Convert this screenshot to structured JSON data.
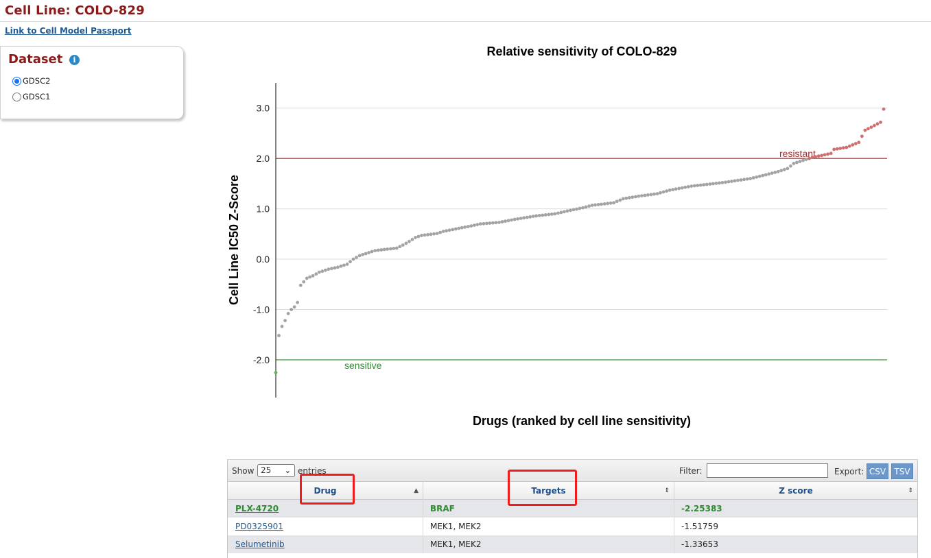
{
  "header": {
    "title": "Cell Line: COLO-829",
    "passport_link": "Link to Cell Model Passport"
  },
  "dataset": {
    "heading": "Dataset",
    "info_icon": "info-icon",
    "options": [
      {
        "label": "GDSC2",
        "checked": true
      },
      {
        "label": "GDSC1",
        "checked": false
      }
    ]
  },
  "chart_data": {
    "type": "scatter",
    "title": "Relative sensitivity of COLO-829",
    "xlabel": "Drugs (ranked by cell line sensitivity)",
    "ylabel": "Cell Line IC50 Z-Score",
    "ylim": [
      -2.75,
      3.5
    ],
    "yticks": [
      "-2.0",
      "-1.0",
      "0.0",
      "1.0",
      "2.0",
      "3.0"
    ],
    "grid": true,
    "thresholds": [
      {
        "label": "resistant",
        "value": 2.0,
        "color": "#a52a2a"
      },
      {
        "label": "sensitive",
        "value": -2.0,
        "color": "#2e8b2e"
      }
    ],
    "colors": {
      "sensitive": "#5fb05f",
      "neutral": "#a3a3a3",
      "resistant": "#cd6f6f"
    },
    "anchors": [
      [
        1,
        -2.25383
      ],
      [
        2,
        -1.51759
      ],
      [
        3,
        -1.33653
      ],
      [
        4,
        -1.22
      ],
      [
        5,
        -1.08
      ],
      [
        6,
        -1.0
      ],
      [
        7,
        -0.95
      ],
      [
        8,
        -0.86
      ],
      [
        9,
        -0.52
      ],
      [
        10,
        -0.45
      ],
      [
        11,
        -0.38
      ],
      [
        13,
        -0.33
      ],
      [
        15,
        -0.26
      ],
      [
        18,
        -0.2
      ],
      [
        21,
        -0.16
      ],
      [
        24,
        -0.1
      ],
      [
        26,
        0.0
      ],
      [
        28,
        0.07
      ],
      [
        31,
        0.13
      ],
      [
        33,
        0.17
      ],
      [
        37,
        0.2
      ],
      [
        40,
        0.22
      ],
      [
        42,
        0.28
      ],
      [
        44,
        0.35
      ],
      [
        46,
        0.43
      ],
      [
        48,
        0.47
      ],
      [
        53,
        0.51
      ],
      [
        55,
        0.55
      ],
      [
        59,
        0.6
      ],
      [
        64,
        0.66
      ],
      [
        67,
        0.7
      ],
      [
        73,
        0.73
      ],
      [
        78,
        0.79
      ],
      [
        85,
        0.86
      ],
      [
        91,
        0.9
      ],
      [
        96,
        0.97
      ],
      [
        100,
        1.02
      ],
      [
        103,
        1.07
      ],
      [
        110,
        1.12
      ],
      [
        113,
        1.2
      ],
      [
        118,
        1.25
      ],
      [
        124,
        1.3
      ],
      [
        128,
        1.37
      ],
      [
        135,
        1.45
      ],
      [
        145,
        1.52
      ],
      [
        154,
        1.6
      ],
      [
        158,
        1.66
      ],
      [
        163,
        1.74
      ],
      [
        166,
        1.8
      ],
      [
        168,
        1.9
      ],
      [
        172,
        1.98
      ],
      [
        174,
        2.02
      ],
      [
        177,
        2.06
      ],
      [
        180,
        2.1
      ],
      [
        181,
        2.18
      ],
      [
        185,
        2.22
      ],
      [
        187,
        2.27
      ],
      [
        189,
        2.32
      ],
      [
        191,
        2.56
      ],
      [
        193,
        2.62
      ],
      [
        196,
        2.72
      ],
      [
        197,
        2.98
      ]
    ]
  },
  "table": {
    "show_label": "Show",
    "entries_value": "25",
    "entries_label": "entries",
    "filter_label": "Filter:",
    "export_label": "Export:",
    "export_buttons": [
      "CSV",
      "TSV"
    ],
    "columns": [
      "Drug",
      "Targets",
      "Z score"
    ],
    "rows": [
      {
        "drug": "PLX-4720",
        "targets": "BRAF",
        "z": "-2.25383"
      },
      {
        "drug": "PD0325901",
        "targets": "MEK1, MEK2",
        "z": "-1.51759"
      },
      {
        "drug": "Selumetinib",
        "targets": "MEK1, MEK2",
        "z": "-1.33653"
      }
    ]
  },
  "annotation_color": "#ee1c1c"
}
